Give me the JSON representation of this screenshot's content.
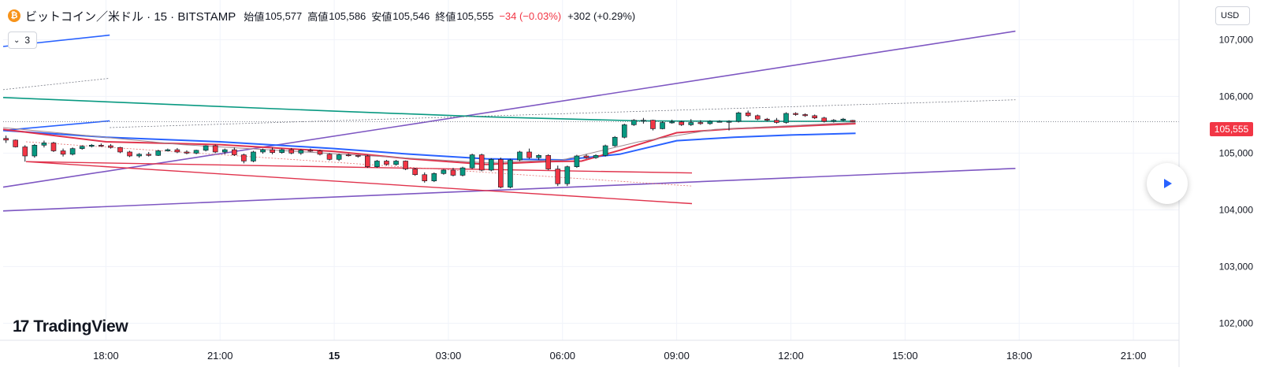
{
  "header": {
    "symbol_title": "ビットコイン／米ドル · 15 · BITSTAMP",
    "coin_glyph": "₿",
    "ohlc": [
      {
        "key": "始値",
        "value": "105,577"
      },
      {
        "key": "高値",
        "value": "105,586"
      },
      {
        "key": "安値",
        "value": "105,546"
      },
      {
        "key": "終値",
        "value": "105,555"
      }
    ],
    "change": "−34 (−0.03%)",
    "change_color": "#f23645",
    "change2": "+302 (+0.29%)",
    "change2_color": "#131722",
    "indicators_toggle": "3",
    "currency": "USD"
  },
  "logo": {
    "mark": "17",
    "text": "TradingView"
  },
  "chart_data": {
    "type": "candlestick",
    "y_axis": {
      "ylim": [
        101700,
        107700
      ],
      "tick_labels": [
        "107,000",
        "106,000",
        "105,000",
        "104,000",
        "103,000",
        "102,000"
      ],
      "tick_values": [
        107000,
        106000,
        105000,
        104000,
        103000,
        102000
      ],
      "position": "right"
    },
    "x_axis": {
      "tick_labels": [
        "18:00",
        "21:00",
        "15",
        "03:00",
        "06:00",
        "09:00",
        "12:00",
        "15:00",
        "18:00",
        "21:00"
      ],
      "tick_hours": [
        18,
        21,
        24,
        27,
        30,
        33,
        36,
        39,
        42,
        45
      ],
      "bold_label": "15",
      "xlim_hours": [
        15.3,
        46.2
      ]
    },
    "last_price": {
      "label": "105,555",
      "value": 105555,
      "color": "#f23645"
    },
    "grid": true,
    "candles": [
      [
        15.375,
        105260,
        105310,
        105180,
        105230
      ],
      [
        15.625,
        105230,
        105240,
        105100,
        105110
      ],
      [
        15.875,
        105110,
        105140,
        104850,
        104950
      ],
      [
        16.125,
        104950,
        105160,
        104920,
        105140
      ],
      [
        16.375,
        105140,
        105220,
        105100,
        105180
      ],
      [
        16.625,
        105180,
        105200,
        105020,
        105040
      ],
      [
        16.875,
        105040,
        105080,
        104940,
        104980
      ],
      [
        17.125,
        104980,
        105100,
        104960,
        105080
      ],
      [
        17.375,
        105080,
        105140,
        105060,
        105120
      ],
      [
        17.625,
        105120,
        105160,
        105100,
        105140
      ],
      [
        17.875,
        105140,
        105170,
        105110,
        105130
      ],
      [
        18.125,
        105130,
        105160,
        105080,
        105100
      ],
      [
        18.375,
        105100,
        105110,
        105000,
        105020
      ],
      [
        18.625,
        105020,
        105040,
        104930,
        104950
      ],
      [
        18.875,
        104950,
        105000,
        104920,
        104980
      ],
      [
        19.125,
        104980,
        105020,
        104940,
        104960
      ],
      [
        19.375,
        104960,
        105060,
        104950,
        105040
      ],
      [
        19.625,
        105040,
        105080,
        105030,
        105060
      ],
      [
        19.875,
        105060,
        105090,
        105000,
        105020
      ],
      [
        20.125,
        105020,
        105050,
        104980,
        105000
      ],
      [
        20.375,
        105000,
        105060,
        104980,
        105050
      ],
      [
        20.625,
        105050,
        105140,
        105030,
        105130
      ],
      [
        20.875,
        105130,
        105150,
        105000,
        105020
      ],
      [
        21.125,
        105020,
        105080,
        104980,
        105060
      ],
      [
        21.375,
        105060,
        105100,
        104950,
        104970
      ],
      [
        21.625,
        104970,
        104990,
        104820,
        104860
      ],
      [
        21.875,
        104860,
        105040,
        104840,
        105020
      ],
      [
        22.125,
        105020,
        105080,
        104990,
        105060
      ],
      [
        22.375,
        105060,
        105100,
        104980,
        105010
      ],
      [
        22.625,
        105010,
        105080,
        104990,
        105060
      ],
      [
        22.875,
        105060,
        105090,
        104980,
        105000
      ],
      [
        23.125,
        105000,
        105070,
        104970,
        105050
      ],
      [
        23.375,
        105050,
        105080,
        105020,
        105040
      ],
      [
        23.625,
        105040,
        105060,
        104960,
        104980
      ],
      [
        23.875,
        104980,
        105000,
        104870,
        104890
      ],
      [
        24.125,
        104890,
        104990,
        104860,
        104970
      ],
      [
        24.375,
        104970,
        104990,
        104940,
        104960
      ],
      [
        24.625,
        104960,
        104970,
        104920,
        104950
      ],
      [
        24.875,
        104950,
        104970,
        104740,
        104760
      ],
      [
        25.125,
        104760,
        104880,
        104740,
        104860
      ],
      [
        25.375,
        104860,
        104880,
        104780,
        104800
      ],
      [
        25.625,
        104800,
        104880,
        104780,
        104860
      ],
      [
        25.875,
        104860,
        104870,
        104700,
        104720
      ],
      [
        26.125,
        104720,
        104740,
        104600,
        104620
      ],
      [
        26.375,
        104620,
        104660,
        104480,
        104510
      ],
      [
        26.625,
        104510,
        104660,
        104490,
        104640
      ],
      [
        26.875,
        104640,
        104720,
        104620,
        104700
      ],
      [
        27.125,
        104700,
        104740,
        104590,
        104610
      ],
      [
        27.375,
        104610,
        104760,
        104590,
        104740
      ],
      [
        27.625,
        104740,
        104990,
        104720,
        104970
      ],
      [
        27.875,
        104970,
        104990,
        104680,
        104700
      ],
      [
        28.125,
        104700,
        104910,
        104680,
        104890
      ],
      [
        28.375,
        104890,
        104920,
        104380,
        104400
      ],
      [
        28.625,
        104400,
        104900,
        104380,
        104880
      ],
      [
        28.875,
        104880,
        105040,
        104860,
        105020
      ],
      [
        29.125,
        105020,
        105080,
        104900,
        104920
      ],
      [
        29.375,
        104920,
        104980,
        104880,
        104960
      ],
      [
        29.625,
        104960,
        104980,
        104700,
        104720
      ],
      [
        29.875,
        104720,
        104780,
        104420,
        104460
      ],
      [
        30.125,
        104460,
        104780,
        104420,
        104760
      ],
      [
        30.375,
        104760,
        104970,
        104740,
        104950
      ],
      [
        30.625,
        104950,
        104980,
        104900,
        104920
      ],
      [
        30.875,
        104920,
        104980,
        104900,
        104960
      ],
      [
        31.125,
        104960,
        105150,
        104940,
        105130
      ],
      [
        31.375,
        105130,
        105300,
        105110,
        105280
      ],
      [
        31.625,
        105280,
        105520,
        105260,
        105500
      ],
      [
        31.875,
        105500,
        105600,
        105480,
        105580
      ],
      [
        32.125,
        105580,
        105620,
        105520,
        105580
      ],
      [
        32.375,
        105580,
        105590,
        105400,
        105430
      ],
      [
        32.625,
        105430,
        105560,
        105420,
        105540
      ],
      [
        32.875,
        105540,
        105590,
        105520,
        105550
      ],
      [
        33.125,
        105550,
        105570,
        105480,
        105500
      ],
      [
        33.375,
        105500,
        105600,
        105480,
        105540
      ],
      [
        33.625,
        105540,
        105580,
        105500,
        105520
      ],
      [
        33.875,
        105520,
        105580,
        105500,
        105560
      ],
      [
        34.125,
        105560,
        105580,
        105540,
        105560
      ],
      [
        34.375,
        105560,
        105580,
        105400,
        105560
      ],
      [
        34.625,
        105560,
        105730,
        105540,
        105710
      ],
      [
        34.875,
        105710,
        105750,
        105640,
        105660
      ],
      [
        35.125,
        105660,
        105680,
        105580,
        105600
      ],
      [
        35.375,
        105600,
        105620,
        105560,
        105580
      ],
      [
        35.625,
        105580,
        105620,
        105520,
        105540
      ],
      [
        35.875,
        105540,
        105720,
        105520,
        105700
      ],
      [
        36.125,
        105700,
        105720,
        105660,
        105680
      ],
      [
        36.375,
        105680,
        105700,
        105640,
        105660
      ],
      [
        36.625,
        105660,
        105680,
        105600,
        105620
      ],
      [
        36.875,
        105620,
        105640,
        105540,
        105560
      ],
      [
        37.125,
        105560,
        105600,
        105540,
        105580
      ],
      [
        37.375,
        105580,
        105620,
        105560,
        105600
      ],
      [
        37.625,
        105577,
        105586,
        105546,
        105555
      ]
    ],
    "candle_colors": {
      "up": "#089981",
      "down": "#f23645"
    },
    "lines": [
      {
        "color": "#7e57c2",
        "width": 1.6,
        "dash": false,
        "points": [
          [
            15.3,
            104400
          ],
          [
            41.9,
            107150
          ]
        ]
      },
      {
        "color": "#7e57c2",
        "width": 1.6,
        "dash": false,
        "points": [
          [
            15.3,
            103980
          ],
          [
            41.9,
            104730
          ]
        ]
      },
      {
        "color": "#089981",
        "width": 1.6,
        "dash": false,
        "points": [
          [
            15.3,
            105980
          ],
          [
            20,
            105850
          ],
          [
            24,
            105740
          ],
          [
            28,
            105640
          ],
          [
            32,
            105570
          ],
          [
            35,
            105560
          ],
          [
            37.7,
            105560
          ]
        ]
      },
      {
        "color": "#2962ff",
        "width": 1.6,
        "dash": false,
        "points": [
          [
            15.3,
            106880
          ],
          [
            18.1,
            107080
          ]
        ]
      },
      {
        "color": "#2962ff",
        "width": 1.6,
        "dash": false,
        "points": [
          [
            15.3,
            105400
          ],
          [
            18.1,
            105570
          ]
        ]
      },
      {
        "color": "#787b86",
        "width": 0.8,
        "dash": true,
        "points": [
          [
            15.3,
            106120
          ],
          [
            18.1,
            106320
          ]
        ]
      },
      {
        "color": "#787b86",
        "width": 0.8,
        "dash": true,
        "points": [
          [
            18.1,
            105450
          ],
          [
            41.9,
            105940
          ]
        ]
      },
      {
        "color": "#e0334c",
        "width": 1.4,
        "dash": false,
        "points": [
          [
            15.9,
            104850
          ],
          [
            33.4,
            104650
          ]
        ]
      },
      {
        "color": "#e0334c",
        "width": 1.4,
        "dash": false,
        "points": [
          [
            15.9,
            104850
          ],
          [
            33.4,
            104110
          ]
        ]
      },
      {
        "color": "#e57373",
        "width": 0.8,
        "dash": true,
        "points": [
          [
            15.9,
            105200
          ],
          [
            33.4,
            104420
          ]
        ]
      },
      {
        "color": "#2962ff",
        "width": 2,
        "dash": false,
        "points": [
          [
            15.3,
            105400
          ],
          [
            18,
            105280
          ],
          [
            21,
            105200
          ],
          [
            24,
            105080
          ],
          [
            26,
            104980
          ],
          [
            28,
            104900
          ],
          [
            30,
            104880
          ],
          [
            31.5,
            104980
          ],
          [
            33,
            105220
          ],
          [
            34.5,
            105280
          ],
          [
            36,
            105320
          ],
          [
            37.7,
            105350
          ]
        ]
      },
      {
        "color": "#e0334c",
        "width": 2,
        "dash": false,
        "points": [
          [
            15.3,
            105420
          ],
          [
            18,
            105200
          ],
          [
            21,
            105150
          ],
          [
            24,
            105030
          ],
          [
            26,
            104900
          ],
          [
            28,
            104800
          ],
          [
            29.5,
            104850
          ],
          [
            30.5,
            104860
          ],
          [
            31.5,
            105050
          ],
          [
            33,
            105360
          ],
          [
            34.5,
            105430
          ],
          [
            36,
            105470
          ],
          [
            37.7,
            105520
          ]
        ]
      },
      {
        "color": "#a1888f",
        "width": 1,
        "dash": false,
        "points": [
          [
            15.3,
            105450
          ],
          [
            20,
            105150
          ],
          [
            25,
            104950
          ],
          [
            28,
            104830
          ],
          [
            30,
            104880
          ],
          [
            32,
            105200
          ],
          [
            34,
            105420
          ],
          [
            37.7,
            105540
          ]
        ]
      }
    ],
    "series": []
  }
}
